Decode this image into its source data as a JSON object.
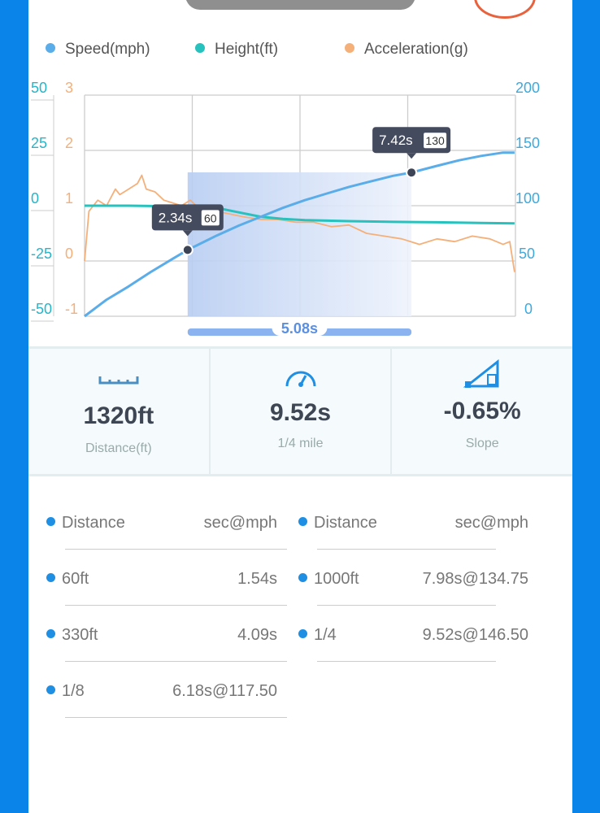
{
  "legend": [
    {
      "label": "Speed(mph)",
      "color": "#5aade8"
    },
    {
      "label": "Height(ft)",
      "color": "#27c2bd"
    },
    {
      "label": "Acceleration(g)",
      "color": "#f5b07a"
    }
  ],
  "chart_data": {
    "type": "line",
    "xlim": [
      0,
      9.78
    ],
    "axes": {
      "height": {
        "ticks": [
          "50",
          "25",
          "0",
          "-25",
          "-50"
        ],
        "range": [
          -50,
          50
        ],
        "color": "#27b5c9",
        "side": "left"
      },
      "accel": {
        "ticks": [
          "3",
          "2",
          "1",
          "0",
          "-1"
        ],
        "range": [
          -1,
          3
        ],
        "color": "#f5b07a",
        "side": "left"
      },
      "speed": {
        "ticks": [
          "200",
          "150",
          "100",
          "50",
          "0"
        ],
        "range": [
          0,
          200
        ],
        "color": "#3fa9dd",
        "side": "right"
      }
    },
    "grid": true,
    "series": [
      {
        "name": "Speed(mph)",
        "color": "#5aade8",
        "x": [
          0,
          0.5,
          1,
          1.5,
          2,
          2.34,
          3,
          3.5,
          4,
          4.5,
          5,
          5.5,
          6,
          6.5,
          7,
          7.42,
          8,
          8.5,
          9,
          9.5,
          9.76
        ],
        "y": [
          0,
          15,
          27,
          40,
          52,
          60,
          73,
          82,
          90,
          98,
          105,
          111,
          117,
          122,
          127,
          130,
          136,
          141,
          145,
          148,
          148
        ]
      },
      {
        "name": "Height(ft)",
        "color": "#27c2bd",
        "x": [
          0,
          1,
          2,
          3,
          3.5,
          4,
          4.5,
          5,
          6,
          7,
          8,
          9,
          9.76
        ],
        "y": [
          0,
          0,
          -0.3,
          -1,
          -3,
          -5,
          -6,
          -6.5,
          -7,
          -7.3,
          -7.5,
          -7.8,
          -8
        ]
      },
      {
        "name": "Acceleration(g)",
        "color": "#f5b07a",
        "x": [
          0,
          0.1,
          0.3,
          0.5,
          0.7,
          0.8,
          1.0,
          1.2,
          1.3,
          1.4,
          1.6,
          1.8,
          2.0,
          2.2,
          2.4,
          2.6,
          2.8,
          3.0,
          3.3,
          3.6,
          4.0,
          4.4,
          4.8,
          5.2,
          5.6,
          6.0,
          6.4,
          6.8,
          7.2,
          7.6,
          8.0,
          8.4,
          8.8,
          9.2,
          9.5,
          9.65,
          9.76
        ],
        "y": [
          0,
          0.9,
          1.1,
          1.0,
          1.3,
          1.2,
          1.3,
          1.4,
          1.55,
          1.3,
          1.25,
          1.1,
          1.05,
          1.0,
          1.1,
          0.95,
          1.0,
          0.9,
          0.85,
          0.8,
          0.75,
          0.75,
          0.7,
          0.7,
          0.62,
          0.65,
          0.5,
          0.45,
          0.4,
          0.3,
          0.4,
          0.35,
          0.45,
          0.4,
          0.3,
          0.35,
          -0.2
        ]
      }
    ],
    "markers": [
      {
        "x": 2.34,
        "time": "2.34s",
        "speed": "60"
      },
      {
        "x": 7.42,
        "time": "7.42s",
        "speed": "130"
      }
    ],
    "selection": {
      "from": 2.34,
      "to": 7.42,
      "label": "5.08s"
    }
  },
  "stats": [
    {
      "icon": "ruler-icon",
      "value": "1320ft",
      "label": "Distance(ft)"
    },
    {
      "icon": "speedometer-icon",
      "value": "9.52s",
      "label": "1/4 mile"
    },
    {
      "icon": "slope-icon",
      "value": "-0.65%",
      "label": "Slope"
    }
  ],
  "table": {
    "left": [
      {
        "name": "Distance",
        "value": "sec@mph"
      },
      {
        "name": "60ft",
        "value": "1.54s"
      },
      {
        "name": "330ft",
        "value": "4.09s"
      },
      {
        "name": "1/8",
        "value": "6.18s@117.50"
      }
    ],
    "right": [
      {
        "name": "Distance",
        "value": "sec@mph"
      },
      {
        "name": "1000ft",
        "value": "7.98s@134.75"
      },
      {
        "name": "1/4",
        "value": "9.52s@146.50"
      }
    ]
  }
}
